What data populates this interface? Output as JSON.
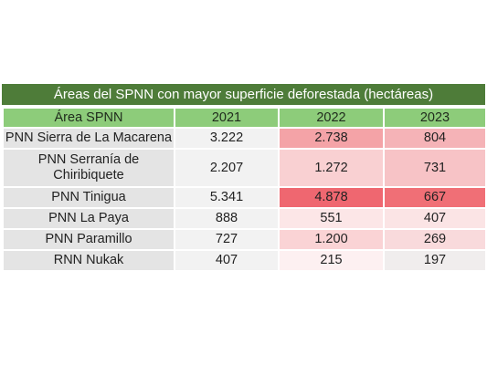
{
  "table": {
    "title": "Áreas del SPNN con mayor superficie deforestada (hectáreas)",
    "headers": [
      "Área SPNN",
      "2021",
      "2022",
      "2023"
    ],
    "rows": [
      {
        "name": "PNN Sierra de La Macarena",
        "v2021": "3.222",
        "v2022": "2.738",
        "v2023": "804",
        "c2022": "#f4a3a7",
        "c2023": "#f5b3b7"
      },
      {
        "name": "PNN Serranía de Chiribiquete",
        "v2021": "2.207",
        "v2022": "1.272",
        "v2023": "731",
        "c2022": "#f9d0d2",
        "c2023": "#f7c3c6"
      },
      {
        "name": "PNN Tinigua",
        "v2021": "5.341",
        "v2022": "4.878",
        "v2023": "667",
        "c2022": "#ef6770",
        "c2023": "#f06f76"
      },
      {
        "name": "PNN La Paya",
        "v2021": "888",
        "v2022": "551",
        "v2023": "407",
        "c2022": "#fce6e7",
        "c2023": "#fbe4e5"
      },
      {
        "name": "PNN Paramillo",
        "v2021": "727",
        "v2022": "1.200",
        "v2023": "269",
        "c2022": "#fad3d5",
        "c2023": "#f9dadc"
      },
      {
        "name": "RNN Nukak",
        "v2021": "407",
        "v2022": "215",
        "v2023": "197",
        "c2022": "#fdf0f1",
        "c2023": "#f0eded"
      }
    ]
  }
}
